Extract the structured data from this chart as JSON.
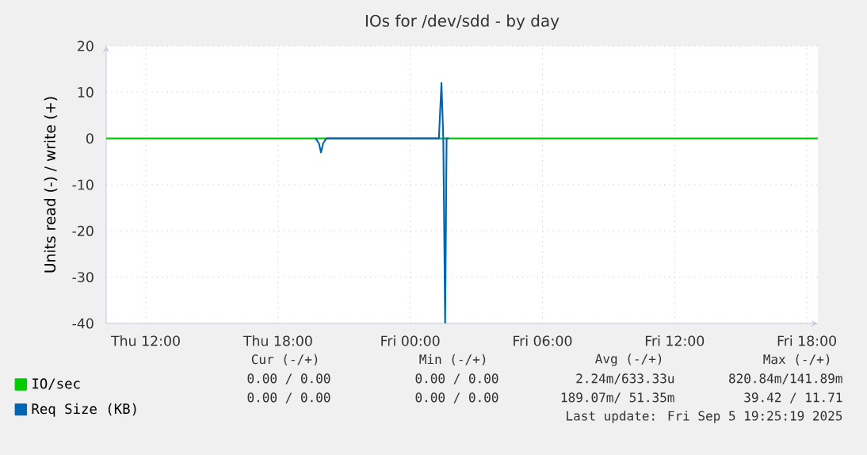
{
  "chart_data": {
    "type": "line",
    "title": "IOs for /dev/sdd - by day",
    "ylabel": "Units read (-) / write (+)",
    "xlim": [
      "2025-09-04T10:12",
      "2025-09-05T18:30"
    ],
    "ylim": [
      -40,
      20
    ],
    "xticks": [
      {
        "value": "2025-09-04T12:00",
        "label": "Thu 12:00"
      },
      {
        "value": "2025-09-04T18:00",
        "label": "Thu 18:00"
      },
      {
        "value": "2025-09-05T00:00",
        "label": "Fri 00:00"
      },
      {
        "value": "2025-09-05T06:00",
        "label": "Fri 06:00"
      },
      {
        "value": "2025-09-05T12:00",
        "label": "Fri 12:00"
      },
      {
        "value": "2025-09-05T18:00",
        "label": "Fri 18:00"
      }
    ],
    "yticks": [
      -40,
      -30,
      -20,
      -10,
      0,
      10,
      20
    ],
    "grid": true,
    "legend": "bottom left",
    "marker": "none",
    "line_style": "solid",
    "series": [
      {
        "name": "IO/sec",
        "color": "#00cc00",
        "x": [
          "2025-09-04T10:12",
          "2025-09-05T18:30"
        ],
        "values": [
          0,
          0
        ]
      },
      {
        "name": "Req Size (KB)",
        "color": "#0066b3",
        "x": [
          "2025-09-04T19:42",
          "2025-09-04T19:51",
          "2025-09-04T19:57",
          "2025-09-04T20:03",
          "2025-09-04T20:12",
          "2025-09-05T01:18",
          "2025-09-05T01:25",
          "2025-09-05T01:30",
          "2025-09-05T01:35",
          "2025-09-05T01:39",
          "2025-09-05T01:45"
        ],
        "values": [
          0,
          -1,
          -3,
          -1,
          0,
          0,
          12,
          0,
          -40,
          0,
          0
        ]
      }
    ],
    "annotations": [
      "Cur (-/+)",
      "Min (-/+)",
      "Avg (-/+)",
      "Max (-/+)",
      "0.00 /  0.00",
      "0.00 /  0.00",
      "2.24m/633.33u",
      "820.84m/141.89m",
      "0.00 /  0.00",
      "0.00 /  0.00",
      "189.07m/ 51.35m",
      "39.42 / 11.71",
      "Last update: Fri Sep  5 19:25:19 2025"
    ]
  }
}
